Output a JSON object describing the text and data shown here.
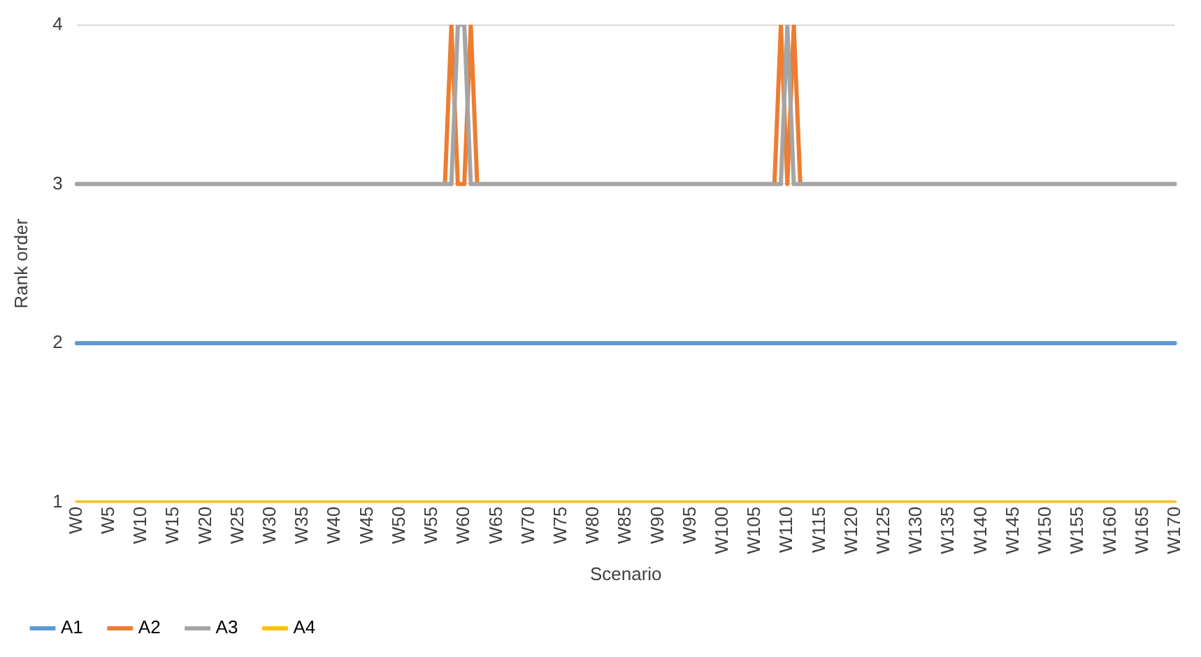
{
  "chart_data": {
    "type": "line",
    "xlabel": "Scenario",
    "ylabel": "Rank order",
    "categories": [
      "W0",
      null,
      null,
      null,
      null,
      "W5",
      null,
      null,
      null,
      null,
      "W10",
      null,
      null,
      null,
      null,
      "W15",
      null,
      null,
      null,
      null,
      "W20",
      null,
      null,
      null,
      null,
      "W25",
      null,
      null,
      null,
      null,
      "W30",
      null,
      null,
      null,
      null,
      "W35",
      null,
      null,
      null,
      null,
      "W40",
      null,
      null,
      null,
      null,
      "W45",
      null,
      null,
      null,
      null,
      "W50",
      null,
      null,
      null,
      null,
      "W55",
      null,
      null,
      null,
      null,
      "W60",
      null,
      null,
      null,
      null,
      "W65",
      null,
      null,
      null,
      null,
      "W70",
      null,
      null,
      null,
      null,
      "W75",
      null,
      null,
      null,
      null,
      "W80",
      null,
      null,
      null,
      null,
      "W85",
      null,
      null,
      null,
      null,
      "W90",
      null,
      null,
      null,
      null,
      "W95",
      null,
      null,
      null,
      null,
      "W100",
      null,
      null,
      null,
      null,
      "W105",
      null,
      null,
      null,
      null,
      "W110",
      null,
      null,
      null,
      null,
      "W115",
      null,
      null,
      null,
      null,
      "W120",
      null,
      null,
      null,
      null,
      "W125",
      null,
      null,
      null,
      null,
      "W130",
      null,
      null,
      null,
      null,
      "W135",
      null,
      null,
      null,
      null,
      "W140",
      null,
      null,
      null,
      null,
      "W145",
      null,
      null,
      null,
      null,
      "W150",
      null,
      null,
      null,
      null,
      "W155",
      null,
      null,
      null,
      null,
      "W160",
      null,
      null,
      null,
      null,
      "W165",
      null,
      null,
      null,
      null,
      "W170"
    ],
    "series": [
      {
        "name": "A1",
        "color": "#5b9bd5",
        "values": [
          2,
          2,
          2,
          2,
          2,
          2,
          2,
          2,
          2,
          2,
          2,
          2,
          2,
          2,
          2,
          2,
          2,
          2,
          2,
          2,
          2,
          2,
          2,
          2,
          2,
          2,
          2,
          2,
          2,
          2,
          2,
          2,
          2,
          2,
          2,
          2,
          2,
          2,
          2,
          2,
          2,
          2,
          2,
          2,
          2,
          2,
          2,
          2,
          2,
          2,
          2,
          2,
          2,
          2,
          2,
          2,
          2,
          2,
          2,
          2,
          2,
          2,
          2,
          2,
          2,
          2,
          2,
          2,
          2,
          2,
          2,
          2,
          2,
          2,
          2,
          2,
          2,
          2,
          2,
          2,
          2,
          2,
          2,
          2,
          2,
          2,
          2,
          2,
          2,
          2,
          2,
          2,
          2,
          2,
          2,
          2,
          2,
          2,
          2,
          2,
          2,
          2,
          2,
          2,
          2,
          2,
          2,
          2,
          2,
          2,
          2,
          2,
          2,
          2,
          2,
          2,
          2,
          2,
          2,
          2,
          2,
          2,
          2,
          2,
          2,
          2,
          2,
          2,
          2,
          2,
          2,
          2,
          2,
          2,
          2,
          2,
          2,
          2,
          2,
          2,
          2,
          2,
          2,
          2,
          2,
          2,
          2,
          2,
          2,
          2,
          2,
          2,
          2,
          2,
          2,
          2,
          2,
          2,
          2,
          2,
          2,
          2,
          2,
          2,
          2,
          2,
          2,
          2,
          2,
          2,
          2
        ]
      },
      {
        "name": "A2",
        "color": "#ed7d31",
        "values": [
          null,
          null,
          null,
          null,
          null,
          null,
          null,
          null,
          null,
          null,
          null,
          null,
          null,
          null,
          null,
          null,
          null,
          null,
          null,
          null,
          null,
          null,
          null,
          null,
          null,
          null,
          null,
          null,
          null,
          null,
          null,
          null,
          null,
          null,
          null,
          null,
          null,
          null,
          null,
          null,
          null,
          null,
          null,
          null,
          null,
          null,
          null,
          null,
          null,
          null,
          null,
          null,
          null,
          null,
          null,
          null,
          null,
          3,
          4,
          3,
          3,
          4,
          3,
          null,
          null,
          null,
          null,
          null,
          null,
          null,
          null,
          null,
          null,
          null,
          null,
          null,
          null,
          null,
          null,
          null,
          null,
          null,
          null,
          null,
          null,
          null,
          null,
          null,
          null,
          null,
          null,
          null,
          null,
          null,
          null,
          null,
          null,
          null,
          null,
          null,
          null,
          null,
          null,
          null,
          null,
          null,
          null,
          null,
          3,
          4,
          3,
          4,
          3,
          null,
          null,
          null,
          null,
          null,
          null,
          null,
          null,
          null,
          null,
          null,
          null,
          null,
          null,
          null,
          null,
          null,
          null,
          null,
          null,
          null,
          null,
          null,
          null,
          null,
          null,
          null,
          null,
          null,
          null,
          null,
          null,
          null,
          null,
          null,
          null,
          null,
          null,
          null,
          null,
          null,
          null,
          null,
          null,
          null,
          null,
          null,
          null,
          null,
          null,
          null,
          null,
          null,
          null,
          null,
          null,
          null,
          null
        ]
      },
      {
        "name": "A3",
        "color": "#a5a5a5",
        "values": [
          3,
          3,
          3,
          3,
          3,
          3,
          3,
          3,
          3,
          3,
          3,
          3,
          3,
          3,
          3,
          3,
          3,
          3,
          3,
          3,
          3,
          3,
          3,
          3,
          3,
          3,
          3,
          3,
          3,
          3,
          3,
          3,
          3,
          3,
          3,
          3,
          3,
          3,
          3,
          3,
          3,
          3,
          3,
          3,
          3,
          3,
          3,
          3,
          3,
          3,
          3,
          3,
          3,
          3,
          3,
          3,
          3,
          3,
          3,
          4,
          4,
          3,
          3,
          3,
          3,
          3,
          3,
          3,
          3,
          3,
          3,
          3,
          3,
          3,
          3,
          3,
          3,
          3,
          3,
          3,
          3,
          3,
          3,
          3,
          3,
          3,
          3,
          3,
          3,
          3,
          3,
          3,
          3,
          3,
          3,
          3,
          3,
          3,
          3,
          3,
          3,
          3,
          3,
          3,
          3,
          3,
          3,
          3,
          3,
          3,
          4,
          3,
          3,
          3,
          3,
          3,
          3,
          3,
          3,
          3,
          3,
          3,
          3,
          3,
          3,
          3,
          3,
          3,
          3,
          3,
          3,
          3,
          3,
          3,
          3,
          3,
          3,
          3,
          3,
          3,
          3,
          3,
          3,
          3,
          3,
          3,
          3,
          3,
          3,
          3,
          3,
          3,
          3,
          3,
          3,
          3,
          3,
          3,
          3,
          3,
          3,
          3,
          3,
          3,
          3,
          3,
          3,
          3,
          3,
          3,
          3
        ]
      },
      {
        "name": "A4",
        "color": "#ffc000",
        "values": [
          1,
          1,
          1,
          1,
          1,
          1,
          1,
          1,
          1,
          1,
          1,
          1,
          1,
          1,
          1,
          1,
          1,
          1,
          1,
          1,
          1,
          1,
          1,
          1,
          1,
          1,
          1,
          1,
          1,
          1,
          1,
          1,
          1,
          1,
          1,
          1,
          1,
          1,
          1,
          1,
          1,
          1,
          1,
          1,
          1,
          1,
          1,
          1,
          1,
          1,
          1,
          1,
          1,
          1,
          1,
          1,
          1,
          1,
          1,
          1,
          1,
          1,
          1,
          1,
          1,
          1,
          1,
          1,
          1,
          1,
          1,
          1,
          1,
          1,
          1,
          1,
          1,
          1,
          1,
          1,
          1,
          1,
          1,
          1,
          1,
          1,
          1,
          1,
          1,
          1,
          1,
          1,
          1,
          1,
          1,
          1,
          1,
          1,
          1,
          1,
          1,
          1,
          1,
          1,
          1,
          1,
          1,
          1,
          1,
          1,
          1,
          1,
          1,
          1,
          1,
          1,
          1,
          1,
          1,
          1,
          1,
          1,
          1,
          1,
          1,
          1,
          1,
          1,
          1,
          1,
          1,
          1,
          1,
          1,
          1,
          1,
          1,
          1,
          1,
          1,
          1,
          1,
          1,
          1,
          1,
          1,
          1,
          1,
          1,
          1,
          1,
          1,
          1,
          1,
          1,
          1,
          1,
          1,
          1,
          1,
          1,
          1,
          1,
          1,
          1,
          1,
          1,
          1,
          1,
          1,
          1
        ]
      }
    ],
    "ylim": [
      1,
      4
    ],
    "yticks": [
      1,
      2,
      3,
      4
    ],
    "grid": "y",
    "legend": "bottom",
    "marker": "none",
    "line_style": "solid"
  }
}
